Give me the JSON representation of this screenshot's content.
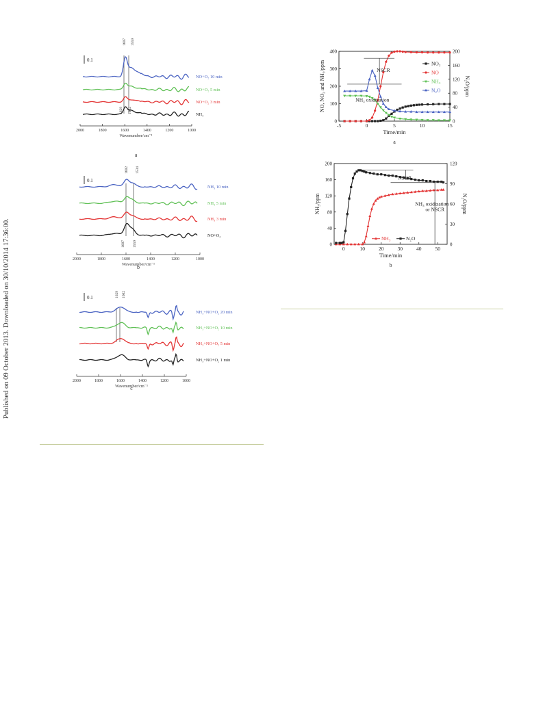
{
  "side_note": "Published on 09 October 2013. Downloaded on 30/10/2014 17:36:00.",
  "colors": {
    "black": "#222222",
    "red": "#e33333",
    "green": "#5fc055",
    "blue": "#4a63c2",
    "rule": "#c8cfa0"
  },
  "panels": [
    {
      "id": "a",
      "caption": "a",
      "scale_label": "0.1",
      "xlabel": "Wavenumber/cm⁻¹",
      "xticks": [
        "2000",
        "1800",
        "1600",
        "1400",
        "1200",
        "1000"
      ],
      "peaks": [
        "1607",
        "1559"
      ],
      "bottom_peaks": [
        "1629",
        "1602"
      ],
      "series": [
        {
          "label": "NO+O₂ 10 min",
          "color": "#4a63c2"
        },
        {
          "label": "NO+O₂ 5 min",
          "color": "#5fc055"
        },
        {
          "label": "NO+O₂ 3 min",
          "color": "#e33333"
        },
        {
          "label": "NH₃",
          "color": "#222222"
        }
      ]
    },
    {
      "id": "b",
      "caption": "b",
      "scale_label": "0.1",
      "xlabel": "Wavenumber/cm⁻¹",
      "xticks": [
        "2000",
        "1800",
        "1600",
        "1400",
        "1200",
        "1000"
      ],
      "peaks": [
        "1602",
        "1534"
      ],
      "bottom_peaks": [
        "1607",
        "1559"
      ],
      "series": [
        {
          "label": "NH₃ 10 min",
          "color": "#4a63c2"
        },
        {
          "label": "NH₃ 5 min",
          "color": "#5fc055"
        },
        {
          "label": "NH₃ 3 min",
          "color": "#e33333"
        },
        {
          "label": "NO+O₂",
          "color": "#222222"
        }
      ]
    },
    {
      "id": "c",
      "caption": "c",
      "scale_label": "0.1",
      "xlabel": "Wavenumber/cm⁻¹",
      "xticks": [
        "2000",
        "1800",
        "1600",
        "1400",
        "1200",
        "1000"
      ],
      "peaks": [
        "1629",
        "1602"
      ],
      "bottom_peaks": [],
      "series": [
        {
          "label": "NH₃+NO+O₂ 20 min",
          "color": "#4a63c2"
        },
        {
          "label": "NH₃+NO+O₂ 10 min",
          "color": "#5fc055"
        },
        {
          "label": "NH₃+NO+O₂ 5 min",
          "color": "#e33333"
        },
        {
          "label": "NH₃+NO+O₂ 1 min",
          "color": "#222222"
        }
      ]
    }
  ],
  "chart_data": [
    {
      "type": "line",
      "caption": "a",
      "xlabel": "Time/min",
      "ylabel_left": "NO, NO₂ and NH₃/ppm",
      "ylabel_right": "N₂O/ppm",
      "xlim": [
        -5,
        15
      ],
      "ylim_left": [
        0,
        400
      ],
      "ylim_right": [
        0,
        200
      ],
      "xticks": [
        "-5",
        "0",
        "5",
        "10",
        "15"
      ],
      "yticks_left": [
        "0",
        "100",
        "200",
        "300",
        "400"
      ],
      "yticks_right": [
        "0",
        "40",
        "80",
        "120",
        "160",
        "200"
      ],
      "annotations": [
        "NSCR",
        "NH₃ oxidization"
      ],
      "series": [
        {
          "name": "NO₂",
          "color": "#222222",
          "marker": "square",
          "axis": "left",
          "x": [
            -4,
            -3,
            -2,
            -1,
            0,
            0.5,
            1,
            1.5,
            2,
            2.5,
            3,
            3.5,
            4,
            4.5,
            5,
            5.5,
            6,
            6.5,
            7,
            7.5,
            8,
            8.5,
            9,
            9.5,
            10,
            11,
            12,
            13,
            14,
            15
          ],
          "y": [
            0,
            0,
            0,
            0,
            0,
            0,
            0,
            0,
            0,
            2,
            5,
            15,
            30,
            42,
            55,
            65,
            72,
            78,
            83,
            86,
            89,
            91,
            93,
            94,
            95,
            96,
            97,
            98,
            98,
            98
          ]
        },
        {
          "name": "NO",
          "color": "#e33333",
          "marker": "circle",
          "axis": "left",
          "x": [
            -4,
            -3,
            -2,
            -1,
            0,
            0.5,
            1,
            1.5,
            2,
            2.5,
            3,
            3.5,
            4,
            4.5,
            5,
            5.5,
            6,
            6.5,
            7,
            8,
            9,
            10,
            11,
            12,
            13,
            14,
            15
          ],
          "y": [
            0,
            0,
            0,
            0,
            0,
            5,
            20,
            60,
            120,
            200,
            280,
            340,
            375,
            392,
            398,
            400,
            400,
            398,
            396,
            395,
            394,
            394,
            393,
            393,
            393,
            393,
            393
          ]
        },
        {
          "name": "NH₃",
          "color": "#5fc055",
          "marker": "triangle-down",
          "axis": "left",
          "x": [
            -4,
            -3,
            -2,
            -1,
            0,
            0.5,
            1,
            1.5,
            2,
            2.5,
            3,
            3.5,
            4,
            4.5,
            5,
            6,
            7,
            8,
            9,
            10,
            11,
            12,
            13,
            14,
            15
          ],
          "y": [
            145,
            145,
            145,
            145,
            144,
            140,
            132,
            120,
            100,
            80,
            62,
            47,
            35,
            26,
            20,
            14,
            11,
            9,
            8,
            7,
            6,
            6,
            5,
            5,
            5
          ]
        },
        {
          "name": "N₂O",
          "color": "#4a63c2",
          "marker": "triangle-up",
          "axis": "right",
          "x": [
            -4,
            -3,
            -2,
            -1,
            0,
            0.5,
            1,
            1.5,
            2,
            2.5,
            3,
            3.5,
            4,
            5,
            6,
            7,
            8,
            9,
            10,
            11,
            12,
            13,
            14,
            15
          ],
          "y": [
            86,
            86,
            86,
            86,
            87,
            120,
            145,
            130,
            95,
            70,
            50,
            40,
            34,
            30,
            28,
            27,
            27,
            26,
            26,
            26,
            26,
            26,
            26,
            26
          ]
        }
      ]
    },
    {
      "type": "line",
      "caption": "b",
      "xlabel": "Time/min",
      "ylabel_left": "NH₃/ppm",
      "ylabel_right": "N₂O/ppm",
      "xlim": [
        -5,
        55
      ],
      "ylim_left": [
        0,
        200
      ],
      "ylim_right": [
        0,
        120
      ],
      "xticks": [
        "0",
        "10",
        "20",
        "30",
        "40",
        "50"
      ],
      "yticks_left": [
        "0",
        "40",
        "80",
        "120",
        "160",
        "200"
      ],
      "yticks_right": [
        "0",
        "30",
        "60",
        "90",
        "120"
      ],
      "annotations": [
        "NSCR",
        "NH₃ oxidization",
        "or NSCR"
      ],
      "series": [
        {
          "name": "NH₃",
          "color": "#e33333",
          "marker": "triangle-up",
          "axis": "left",
          "x": [
            -4,
            -2,
            0,
            2,
            4,
            6,
            8,
            10,
            11,
            12,
            13,
            14,
            15,
            16,
            17,
            18,
            19,
            20,
            22,
            24,
            26,
            28,
            30,
            32,
            34,
            36,
            38,
            40,
            42,
            44,
            46,
            48,
            50,
            52,
            53
          ],
          "y": [
            0,
            0,
            0,
            0,
            0,
            0,
            0,
            0,
            5,
            20,
            45,
            70,
            88,
            100,
            108,
            113,
            116,
            118,
            120,
            122,
            124,
            125,
            126,
            127,
            128,
            129,
            130,
            131,
            132,
            132,
            133,
            134,
            134,
            135,
            135
          ]
        },
        {
          "name": "N₂O",
          "color": "#222222",
          "marker": "square",
          "axis": "right",
          "x": [
            -4,
            -2,
            -1,
            0,
            1,
            2,
            3,
            4,
            5,
            6,
            7,
            8,
            9,
            10,
            11,
            12,
            14,
            16,
            18,
            20,
            22,
            24,
            26,
            28,
            30,
            32,
            34,
            36,
            38,
            40,
            42,
            44,
            46,
            48,
            50,
            52,
            53
          ],
          "y": [
            2,
            2,
            2,
            3,
            20,
            45,
            68,
            85,
            98,
            105,
            108,
            110,
            110,
            109,
            108,
            107,
            106,
            105,
            104,
            104,
            103,
            102,
            102,
            101,
            100,
            99,
            98,
            97,
            96,
            95,
            95,
            94,
            94,
            93,
            93,
            93,
            92
          ]
        }
      ]
    }
  ]
}
